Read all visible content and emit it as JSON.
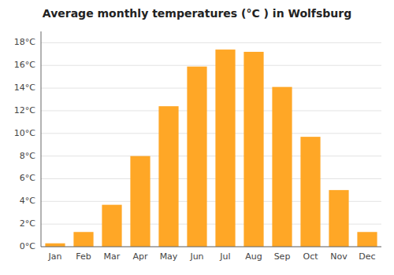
{
  "chart_data": {
    "type": "bar",
    "title": "Average monthly temperatures (°C ) in Wolfsburg",
    "categories": [
      "Jan",
      "Feb",
      "Mar",
      "Apr",
      "May",
      "Jun",
      "Jul",
      "Aug",
      "Sep",
      "Oct",
      "Nov",
      "Dec"
    ],
    "values": [
      0.3,
      1.3,
      3.7,
      8.0,
      12.4,
      15.9,
      17.4,
      17.2,
      14.1,
      9.7,
      5.0,
      1.3
    ],
    "color": "#FFA726",
    "ylim": [
      0,
      19
    ],
    "yticks": [
      {
        "value": 0,
        "label": "0°C"
      },
      {
        "value": 2,
        "label": "2°C"
      },
      {
        "value": 4,
        "label": "4°C"
      },
      {
        "value": 6,
        "label": "6°C"
      },
      {
        "value": 8,
        "label": "8°C"
      },
      {
        "value": 10,
        "label": "10°C"
      },
      {
        "value": 12,
        "label": "12°C"
      },
      {
        "value": 14,
        "label": "14°C"
      },
      {
        "value": 16,
        "label": "16°C"
      },
      {
        "value": 18,
        "label": "18°C"
      }
    ],
    "grid": true
  }
}
